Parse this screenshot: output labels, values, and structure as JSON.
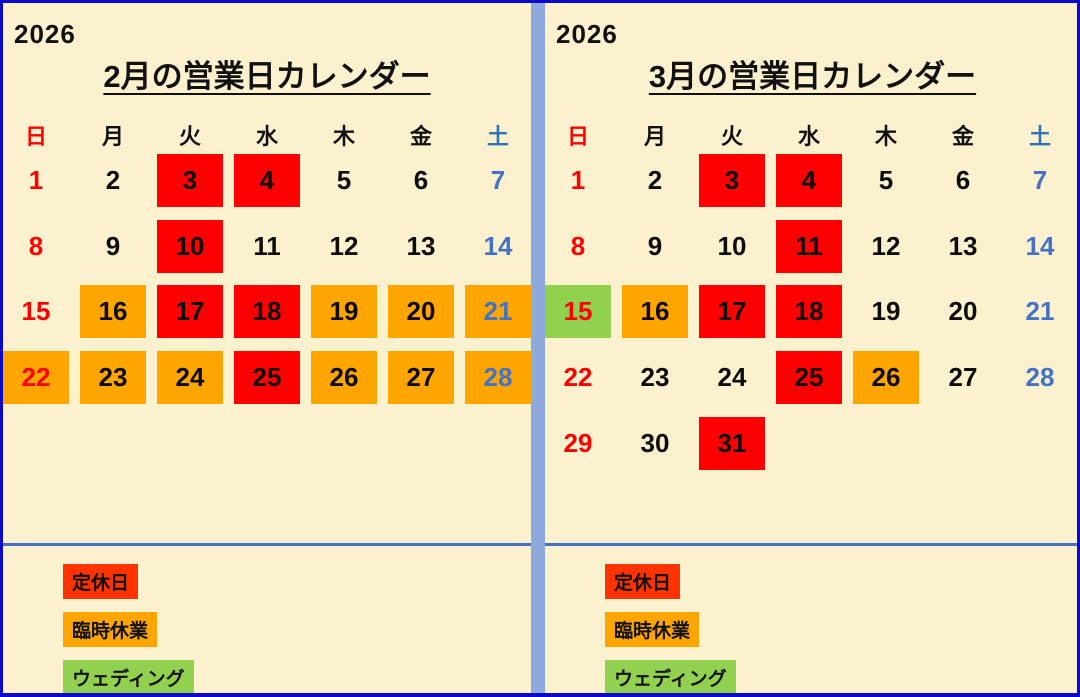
{
  "year": "2026",
  "weekday_headers": [
    "日",
    "月",
    "火",
    "水",
    "木",
    "金",
    "土"
  ],
  "legend": [
    {
      "label": "定休日",
      "color_key": "closed_legend"
    },
    {
      "label": "臨時休業",
      "color_key": "temp_closed"
    },
    {
      "label": "ウェディング",
      "color_key": "wedding"
    }
  ],
  "panels": [
    {
      "id": "february",
      "title": "2月の営業日カレンダー",
      "weeks": [
        [
          {
            "day": "1"
          },
          {
            "day": "2"
          },
          {
            "day": "3",
            "mark": "closed"
          },
          {
            "day": "4",
            "mark": "closed"
          },
          {
            "day": "5"
          },
          {
            "day": "6"
          },
          {
            "day": "7"
          }
        ],
        [
          {
            "day": "8"
          },
          {
            "day": "9"
          },
          {
            "day": "10",
            "mark": "closed"
          },
          {
            "day": "11"
          },
          {
            "day": "12"
          },
          {
            "day": "13"
          },
          {
            "day": "14"
          }
        ],
        [
          {
            "day": "15"
          },
          {
            "day": "16",
            "mark": "temp"
          },
          {
            "day": "17",
            "mark": "closed"
          },
          {
            "day": "18",
            "mark": "closed"
          },
          {
            "day": "19",
            "mark": "temp"
          },
          {
            "day": "20",
            "mark": "temp"
          },
          {
            "day": "21",
            "mark": "temp"
          }
        ],
        [
          {
            "day": "22",
            "mark": "temp"
          },
          {
            "day": "23",
            "mark": "temp"
          },
          {
            "day": "24",
            "mark": "temp"
          },
          {
            "day": "25",
            "mark": "closed"
          },
          {
            "day": "26",
            "mark": "temp"
          },
          {
            "day": "27",
            "mark": "temp"
          },
          {
            "day": "28",
            "mark": "temp"
          }
        ]
      ]
    },
    {
      "id": "march",
      "title": "3月の営業日カレンダー",
      "weeks": [
        [
          {
            "day": "1"
          },
          {
            "day": "2"
          },
          {
            "day": "3",
            "mark": "closed"
          },
          {
            "day": "4",
            "mark": "closed"
          },
          {
            "day": "5"
          },
          {
            "day": "6"
          },
          {
            "day": "7"
          }
        ],
        [
          {
            "day": "8"
          },
          {
            "day": "9"
          },
          {
            "day": "10"
          },
          {
            "day": "11",
            "mark": "closed"
          },
          {
            "day": "12"
          },
          {
            "day": "13"
          },
          {
            "day": "14"
          }
        ],
        [
          {
            "day": "15",
            "mark": "wedding"
          },
          {
            "day": "16",
            "mark": "temp"
          },
          {
            "day": "17",
            "mark": "closed"
          },
          {
            "day": "18",
            "mark": "closed"
          },
          {
            "day": "19"
          },
          {
            "day": "20"
          },
          {
            "day": "21"
          }
        ],
        [
          {
            "day": "22"
          },
          {
            "day": "23"
          },
          {
            "day": "24"
          },
          {
            "day": "25",
            "mark": "closed"
          },
          {
            "day": "26",
            "mark": "temp"
          },
          {
            "day": "27"
          },
          {
            "day": "28"
          }
        ],
        [
          {
            "day": "29"
          },
          {
            "day": "30"
          },
          {
            "day": "31",
            "mark": "closed"
          },
          null,
          null,
          null,
          null
        ]
      ]
    }
  ],
  "colors": {
    "background": "#FCF1CF",
    "frame_border": "#0A0AC8",
    "panel_divider": "#8EA9DB",
    "separator_line": "#4472C4",
    "closed_cell": "#FF0000",
    "closed_legend": "#FF3300",
    "temp_closed": "#FFA500",
    "wedding": "#92D050",
    "sunday_text": "#FF0000",
    "saturday_text": "#4472C4",
    "saturday_header": "#2E74B5"
  }
}
